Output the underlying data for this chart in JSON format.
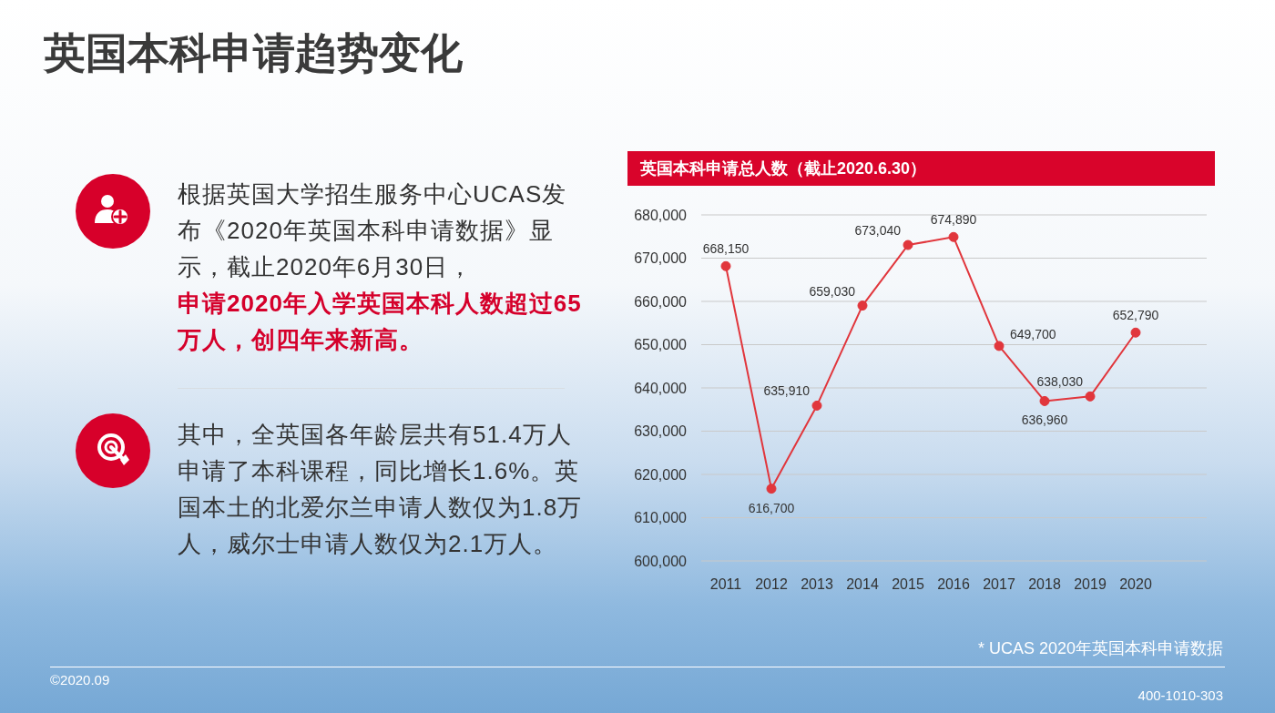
{
  "chart_data": {
    "type": "line",
    "title": "英国本科申请趋势变化",
    "subtitle": "英国本科申请总人数（截止2020.6.30）",
    "categories": [
      "2011",
      "2012",
      "2013",
      "2014",
      "2015",
      "2016",
      "2017",
      "2018",
      "2019",
      "2020"
    ],
    "series": [
      {
        "color": "#e1363c",
        "values": [
          668150,
          616700,
          635910,
          659030,
          673040,
          674890,
          649700,
          636960,
          638030,
          652790
        ],
        "value_labels": [
          "668,150",
          "616,700",
          "635,910",
          "659,030",
          "673,040",
          "674,890",
          "649,700",
          "636,960",
          "638,030",
          "652,790"
        ]
      }
    ],
    "ylim": [
      600000,
      680000
    ],
    "yticks": [
      {
        "value": 600000,
        "label": "600,000"
      },
      {
        "value": 610000,
        "label": "610,000"
      },
      {
        "value": 620000,
        "label": "620,000"
      },
      {
        "value": 630000,
        "label": "630,000"
      },
      {
        "value": 640000,
        "label": "640,000"
      },
      {
        "value": 650000,
        "label": "650,000"
      },
      {
        "value": 660000,
        "label": "660,000"
      },
      {
        "value": 670000,
        "label": "670,000"
      },
      {
        "value": 680000,
        "label": "680,000"
      }
    ],
    "grid": "y",
    "marker": "circle",
    "line_style": "solid",
    "annotations": [
      "根据英国大学招生服务中心UCAS发布《2020年英国本科申请数据》显示，截止2020年6月30日，",
      "申请2020年入学英国本科人数超过65万人，创四年来新高。",
      "其中，全英国各年龄层共有51.4万人申请了本科课程，同比增长1.6%。英国本土的北爱尔兰申请人数仅为1.8万人，威尔士申请人数仅为2.1万人。",
      "* UCAS 2020年英国本科申请数据",
      "©2020.09",
      "400-1010-303"
    ]
  }
}
